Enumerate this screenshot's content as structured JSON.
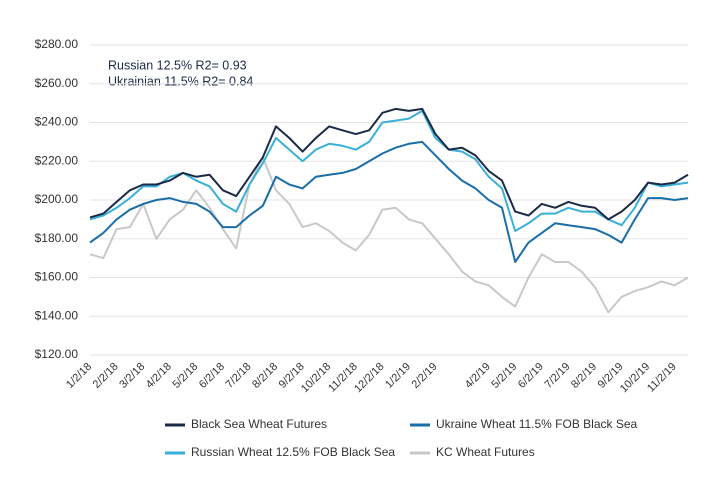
{
  "chart_data": {
    "type": "line",
    "annotations": [
      "Russian 12.5% R2= 0.93",
      "Ukrainian 11.5% R2= 0.84"
    ],
    "categories": [
      "1/2/18",
      null,
      "2/2/18",
      null,
      "3/2/18",
      null,
      "4/2/18",
      null,
      "5/2/18",
      null,
      "6/2/18",
      null,
      "7/2/18",
      null,
      "8/2/18",
      null,
      "9/2/18",
      null,
      "10/2/18",
      null,
      "11/2/18",
      null,
      "12/2/18",
      null,
      "1/2/19",
      null,
      "2/2/19",
      null,
      null,
      null,
      "4/2/19",
      null,
      "5/2/19",
      null,
      "6/2/19",
      null,
      "7/2/19",
      null,
      "8/2/19",
      null,
      "9/2/19",
      null,
      "10/2/19",
      null,
      "11/2/19",
      null
    ],
    "series": [
      {
        "name": "Black Sea Wheat Futures",
        "color": "#1b2a47",
        "values": [
          191,
          193,
          199,
          205,
          208,
          208,
          210,
          214,
          212,
          213,
          205,
          202,
          212,
          222,
          238,
          232,
          225,
          232,
          238,
          236,
          234,
          236,
          245,
          247,
          246,
          247,
          234,
          226,
          227,
          223,
          215,
          210,
          194,
          192,
          198,
          196,
          199,
          197,
          196,
          190,
          194,
          200,
          209,
          208,
          209,
          213
        ]
      },
      {
        "name": "Ukraine Wheat 11.5% FOB Black Sea",
        "color": "#1a6ea8",
        "values": [
          178,
          183,
          190,
          195,
          198,
          200,
          201,
          199,
          198,
          194,
          186,
          186,
          192,
          197,
          212,
          208,
          206,
          212,
          213,
          214,
          216,
          220,
          224,
          227,
          229,
          230,
          223,
          216,
          210,
          206,
          200,
          196,
          168,
          178,
          183,
          188,
          187,
          186,
          185,
          182,
          178,
          190,
          201,
          201,
          200,
          201
        ]
      },
      {
        "name": "Russian Wheat 12.5% FOB Black Sea",
        "color": "#3aafd9",
        "values": [
          190,
          192,
          196,
          201,
          207,
          207,
          212,
          214,
          210,
          207,
          198,
          194,
          208,
          219,
          232,
          226,
          220,
          226,
          229,
          228,
          226,
          230,
          240,
          241,
          242,
          246,
          232,
          226,
          225,
          221,
          212,
          206,
          184,
          188,
          193,
          193,
          196,
          194,
          194,
          190,
          187,
          196,
          209,
          207,
          208,
          209
        ]
      },
      {
        "name": "KC Wheat Futures",
        "color": "#c8c8c8",
        "values": [
          172,
          170,
          185,
          186,
          198,
          180,
          190,
          195,
          205,
          196,
          185,
          175,
          208,
          222,
          205,
          198,
          186,
          188,
          184,
          178,
          174,
          182,
          195,
          196,
          190,
          188,
          180,
          172,
          163,
          158,
          156,
          150,
          145,
          160,
          172,
          168,
          168,
          163,
          155,
          142,
          150,
          153,
          155,
          158,
          156,
          160
        ]
      }
    ],
    "ylim": [
      120,
      280
    ],
    "yticks": [
      {
        "value": 120,
        "label": "$120.00"
      },
      {
        "value": 140,
        "label": "$140.00"
      },
      {
        "value": 160,
        "label": "$160.00"
      },
      {
        "value": 180,
        "label": "$180.00"
      },
      {
        "value": 200,
        "label": "$200.00"
      },
      {
        "value": 220,
        "label": "$220.00"
      },
      {
        "value": 240,
        "label": "$240.00"
      },
      {
        "value": 260,
        "label": "$260.00"
      },
      {
        "value": 280,
        "label": "$280.00"
      }
    ],
    "grid": true
  }
}
